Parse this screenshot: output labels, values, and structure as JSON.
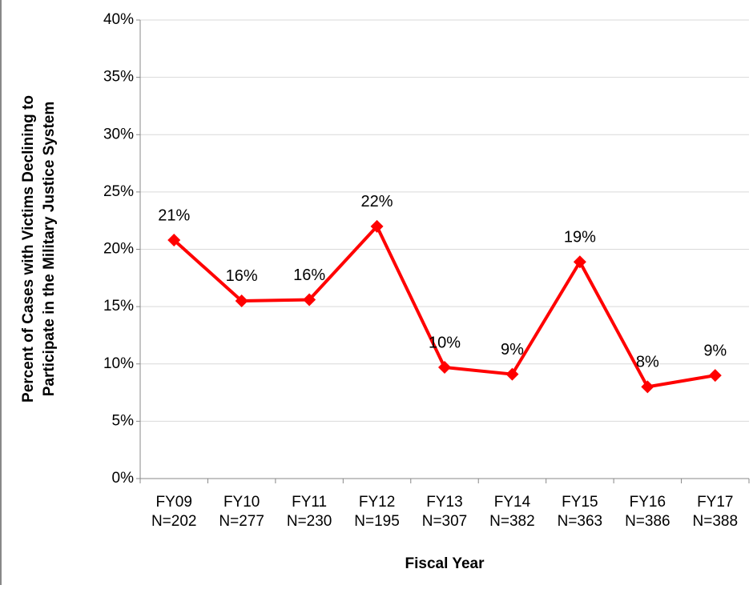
{
  "chart_data": {
    "type": "line",
    "xlabel": "Fiscal Year",
    "ylabel": [
      "Percent of Cases with Victims Declining to",
      "Participate in the Military Justice System"
    ],
    "categories": [
      "FY09",
      "FY10",
      "FY11",
      "FY12",
      "FY13",
      "FY14",
      "FY15",
      "FY16",
      "FY17"
    ],
    "category_counts": [
      "N=202",
      "N=277",
      "N=230",
      "N=195",
      "N=307",
      "N=382",
      "N=363",
      "N=386",
      "N=388"
    ],
    "values": [
      20.8,
      15.5,
      15.6,
      22.0,
      9.7,
      9.1,
      18.9,
      8.0,
      9.0
    ],
    "value_labels": [
      "21%",
      "16%",
      "16%",
      "22%",
      "10%",
      "9%",
      "19%",
      "8%",
      "9%"
    ],
    "color": "#ff0000",
    "ylim": [
      0,
      40
    ],
    "yticks": [
      {
        "value": 0,
        "label": "0%"
      },
      {
        "value": 5,
        "label": "5%"
      },
      {
        "value": 10,
        "label": "10%"
      },
      {
        "value": 15,
        "label": "15%"
      },
      {
        "value": 20,
        "label": "20%"
      },
      {
        "value": 25,
        "label": "25%"
      },
      {
        "value": 30,
        "label": "30%"
      },
      {
        "value": 35,
        "label": "35%"
      },
      {
        "value": 40,
        "label": "40%"
      }
    ],
    "grid": true
  }
}
